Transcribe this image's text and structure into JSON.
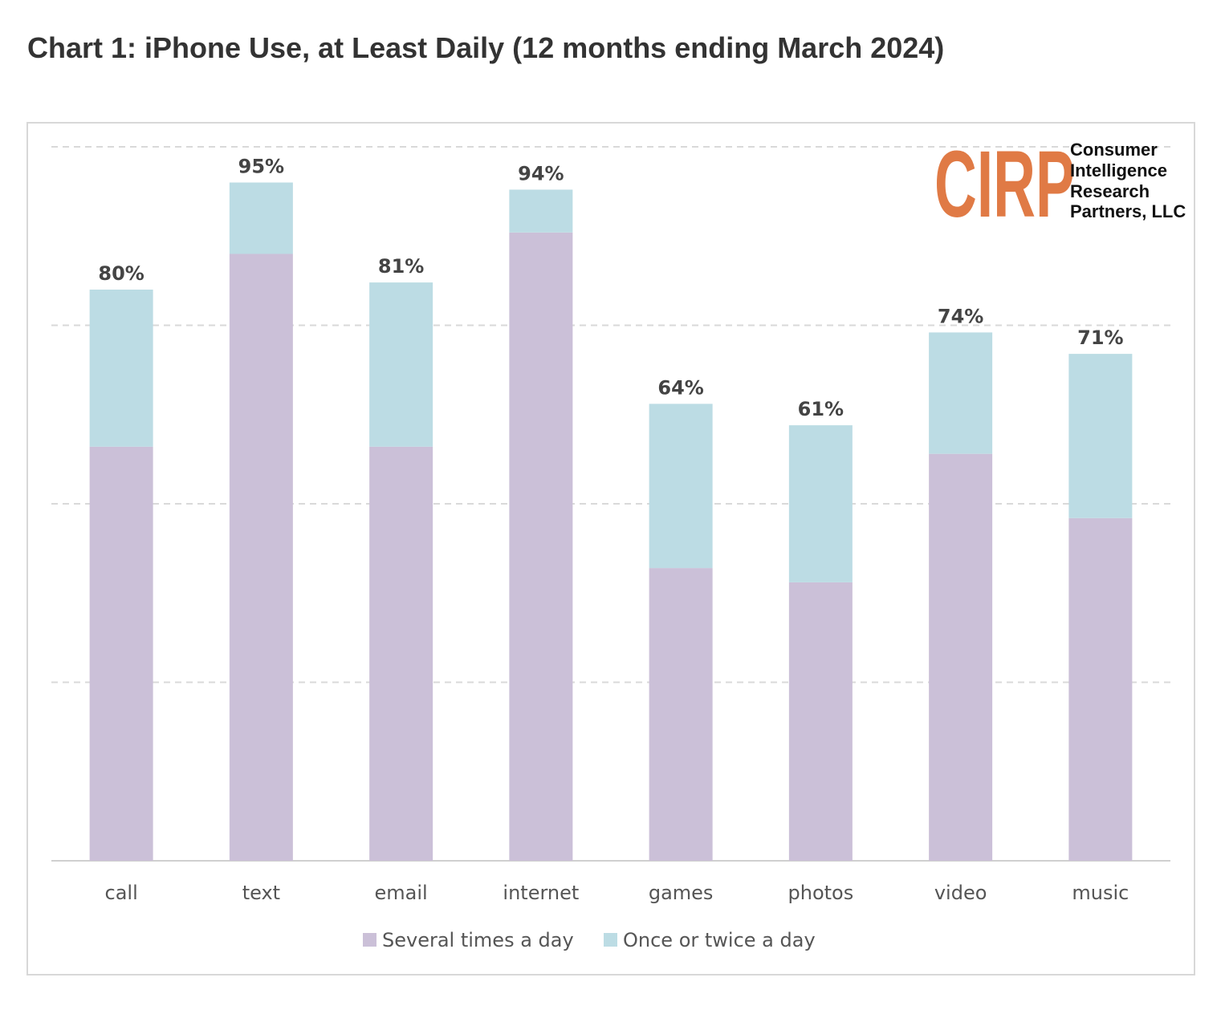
{
  "chart_data": {
    "type": "bar",
    "stacked": true,
    "title": "Chart 1: iPhone Use, at Least Daily (12 months ending March 2024)",
    "categories": [
      "call",
      "text",
      "email",
      "internet",
      "games",
      "photos",
      "video",
      "music"
    ],
    "series": [
      {
        "name": "Several times a day",
        "color": "#cbc0d8",
        "values": [
          58,
          85,
          58,
          88,
          41,
          39,
          57,
          48
        ]
      },
      {
        "name": "Once or twice a day",
        "color": "#bcdce4",
        "values": [
          22,
          10,
          23,
          6,
          23,
          22,
          17,
          23
        ]
      }
    ],
    "totals_labels": [
      "80%",
      "95%",
      "81%",
      "94%",
      "64%",
      "61%",
      "74%",
      "71%"
    ],
    "totals": [
      80,
      95,
      81,
      94,
      64,
      61,
      74,
      71
    ],
    "ylim": [
      0,
      100
    ],
    "grid": true,
    "legend_position": "bottom"
  },
  "logo": {
    "mark": "CIRP",
    "lines": [
      "Consumer",
      "Intelligence",
      "Research",
      "Partners, LLC"
    ],
    "color": "#e07a45"
  }
}
